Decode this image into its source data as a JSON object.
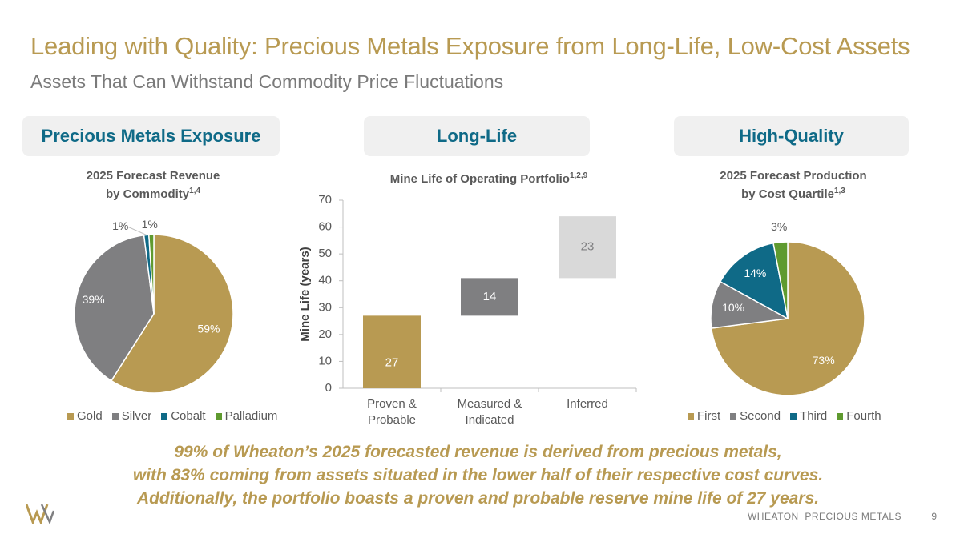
{
  "header": {
    "title": "Leading with Quality: Precious Metals Exposure from Long-Life, Low-Cost Assets",
    "subtitle": "Assets That Can Withstand Commodity Price Fluctuations"
  },
  "pills": {
    "left": "Precious Metals Exposure",
    "middle": "Long-Life",
    "right": "High-Quality"
  },
  "chart_data": [
    {
      "type": "pie",
      "title_line1": "2025 Forecast Revenue",
      "title_line2": "by Commodity",
      "title_sup": "1,4",
      "labels": [
        "Gold",
        "Silver",
        "Cobalt",
        "Palladium"
      ],
      "values": [
        59,
        39,
        1,
        1
      ],
      "value_labels": [
        "59%",
        "39%",
        "1%",
        "1%"
      ],
      "colors": [
        "#b89a52",
        "#7f7f81",
        "#0f6a87",
        "#5f9a2f"
      ],
      "legend_position": "bottom"
    },
    {
      "type": "bar",
      "subtype": "waterfall",
      "title": "Mine Life of Operating Portfolio",
      "title_sup": "1,2,9",
      "ylabel": "Mine Life (years)",
      "ylim": [
        0,
        70
      ],
      "yticks": [
        "0",
        "10",
        "20",
        "30",
        "40",
        "50",
        "60",
        "70"
      ],
      "categories": [
        "Proven & Probable",
        "Measured & Indicated",
        "Inferred"
      ],
      "category_lines": [
        [
          "Proven &",
          "Probable"
        ],
        [
          "Measured &",
          "Indicated"
        ],
        [
          "Inferred"
        ]
      ],
      "values": [
        27,
        14,
        23
      ],
      "value_labels": [
        "27",
        "14",
        "23"
      ],
      "colors": [
        "#b89a52",
        "#7f7f81",
        "#d9d9d9"
      ],
      "grid": false
    },
    {
      "type": "pie",
      "title_line1": "2025 Forecast Production",
      "title_line2": "by Cost Quartile",
      "title_sup": "1,3",
      "labels": [
        "First",
        "Second",
        "Third",
        "Fourth"
      ],
      "values": [
        73,
        10,
        14,
        3
      ],
      "value_labels": [
        "73%",
        "10%",
        "14%",
        "3%"
      ],
      "colors": [
        "#b89a52",
        "#7f7f81",
        "#0f6a87",
        "#5f9a2f"
      ],
      "legend_position": "bottom"
    }
  ],
  "footer": {
    "line1": "99% of Wheaton’s 2025 forecasted revenue is derived from precious metals,",
    "line2": "with 83% coming from assets situated in the lower half of their respective cost curves.",
    "line3": "Additionally, the portfolio boasts a proven and probable reserve mine life of 27 years.",
    "brand": "WHEATON  PRECIOUS METALS",
    "page": "9"
  }
}
